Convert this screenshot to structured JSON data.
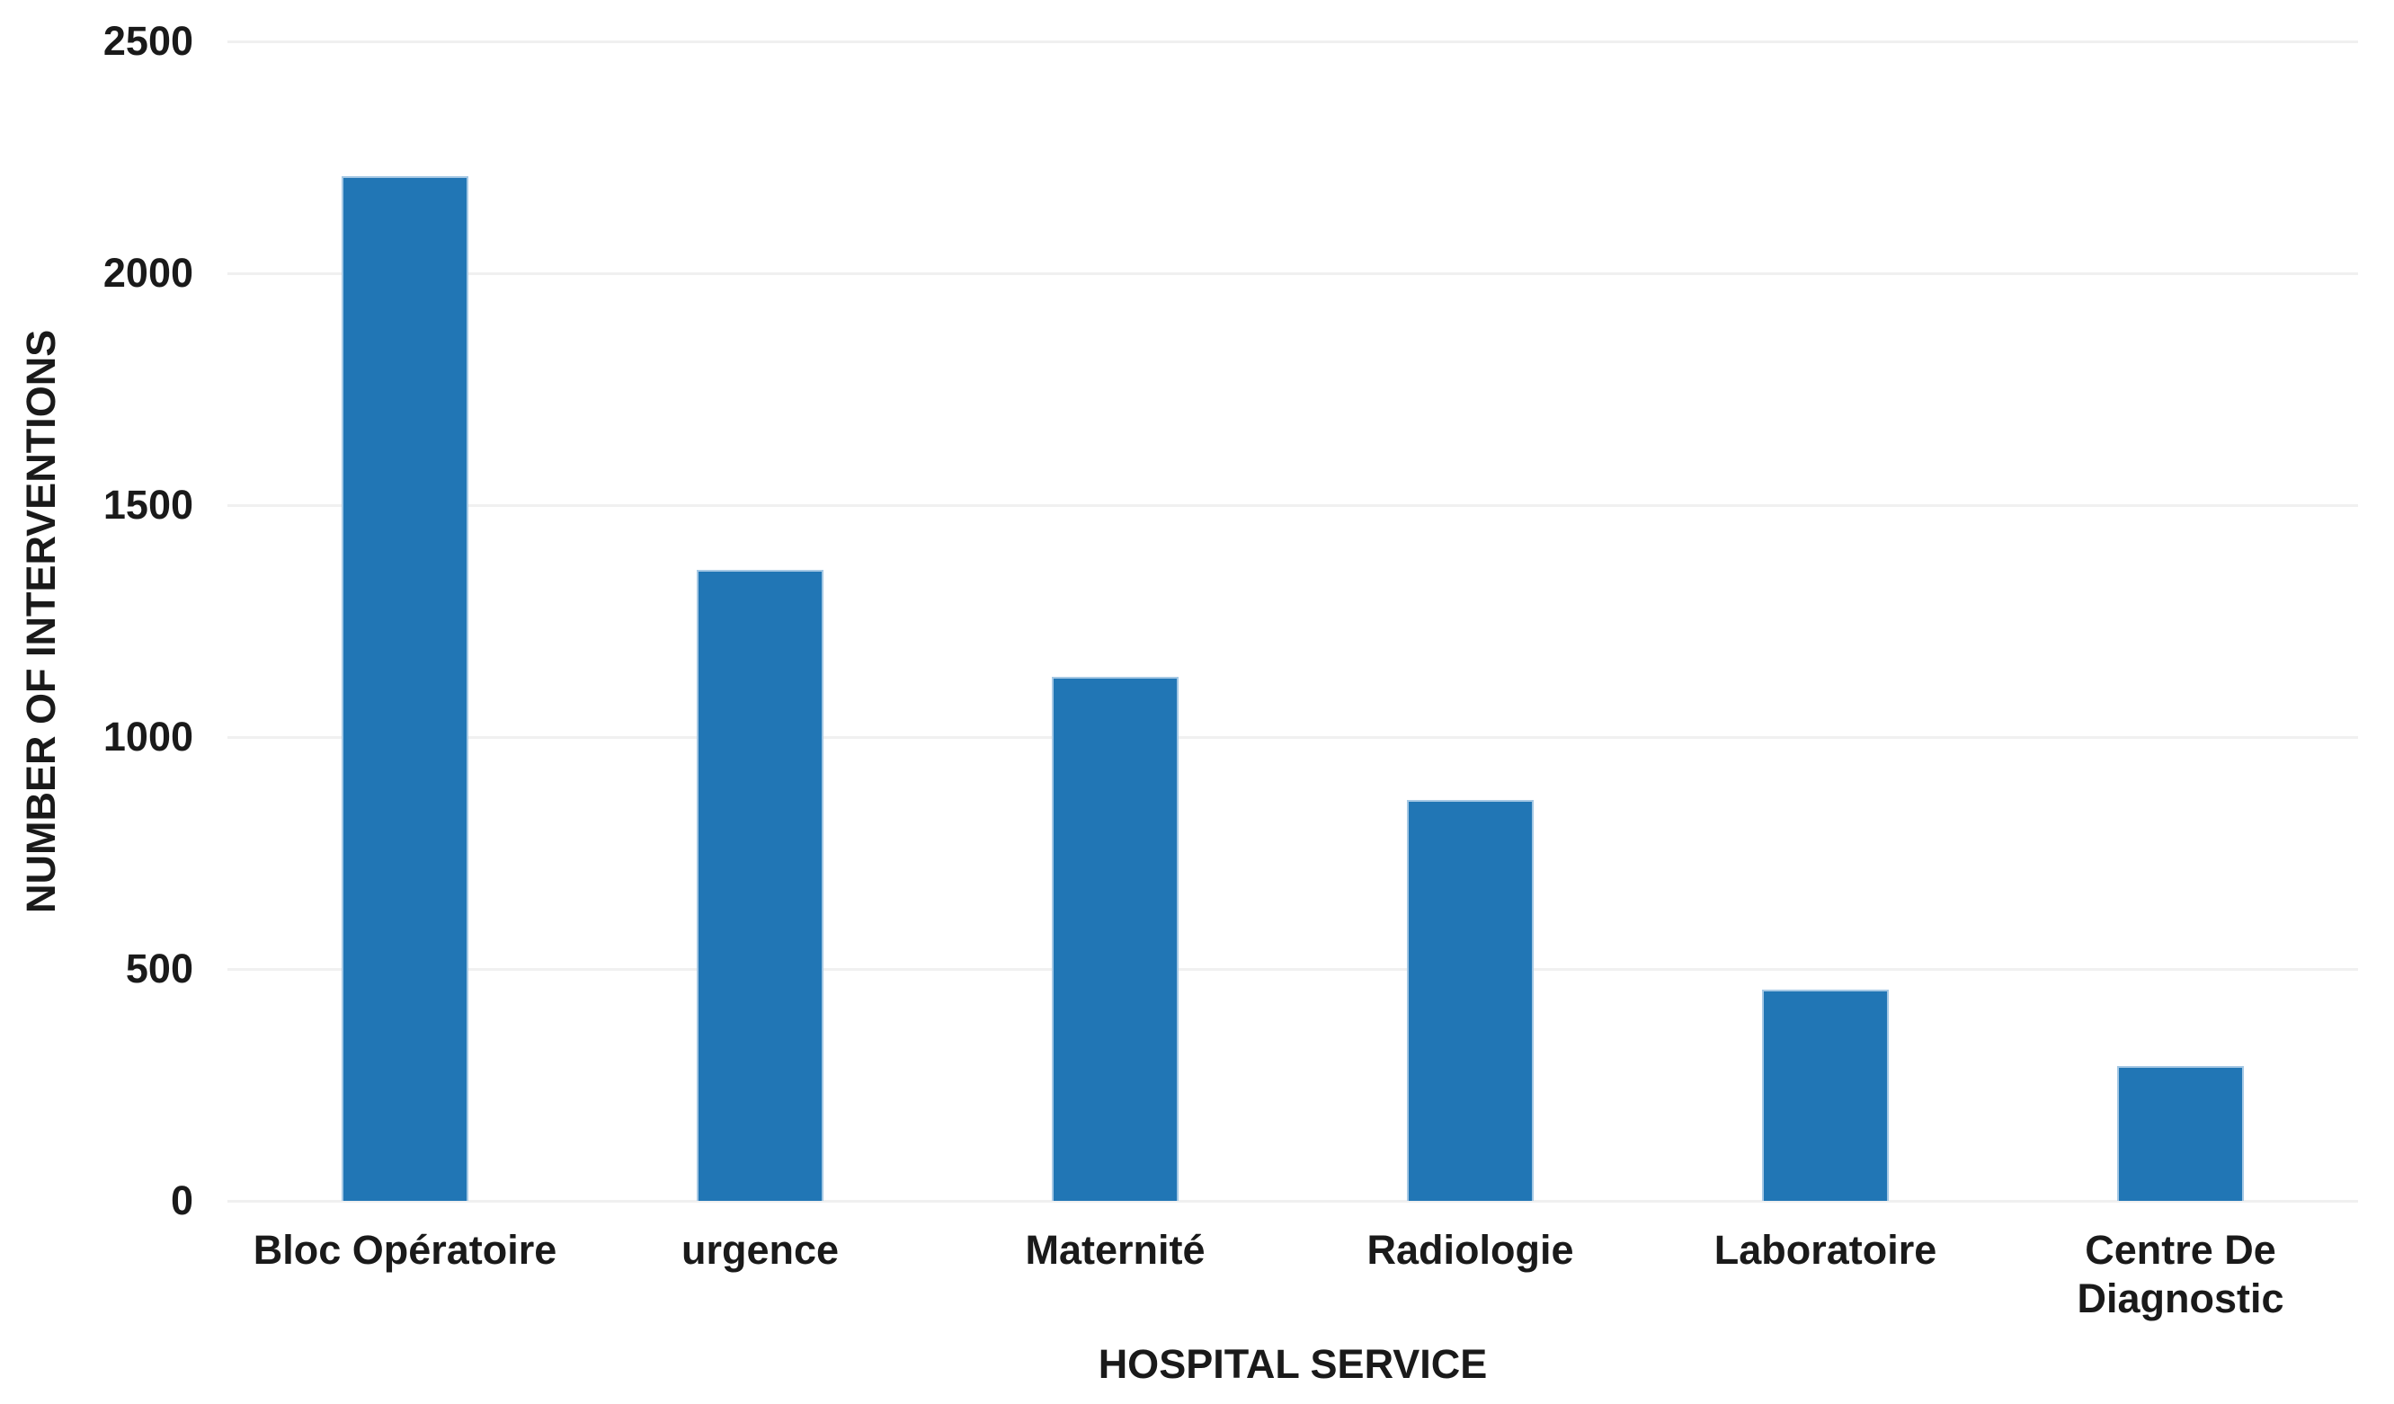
{
  "chart_data": {
    "type": "bar",
    "title": "",
    "categories": [
      "Bloc Opératoire",
      "urgence",
      "Maternité",
      "Radiologie",
      "Laboratoire",
      "Centre De Diagnostic"
    ],
    "values": [
      2210,
      1360,
      1130,
      865,
      455,
      290
    ],
    "xlabel": "HOSPITAL SERVICE",
    "ylabel": "NUMBER OF INTERVENTIONS",
    "ylim": [
      0,
      2500
    ],
    "yticks": [
      0,
      500,
      1000,
      1500,
      2000,
      2500
    ],
    "grid": true,
    "legend": false,
    "bar_color": "#2176b5",
    "bar_edge_color": "#a5c8e4",
    "gridline_color": "#f0f0f0",
    "text_color": "#1a1a1a"
  }
}
